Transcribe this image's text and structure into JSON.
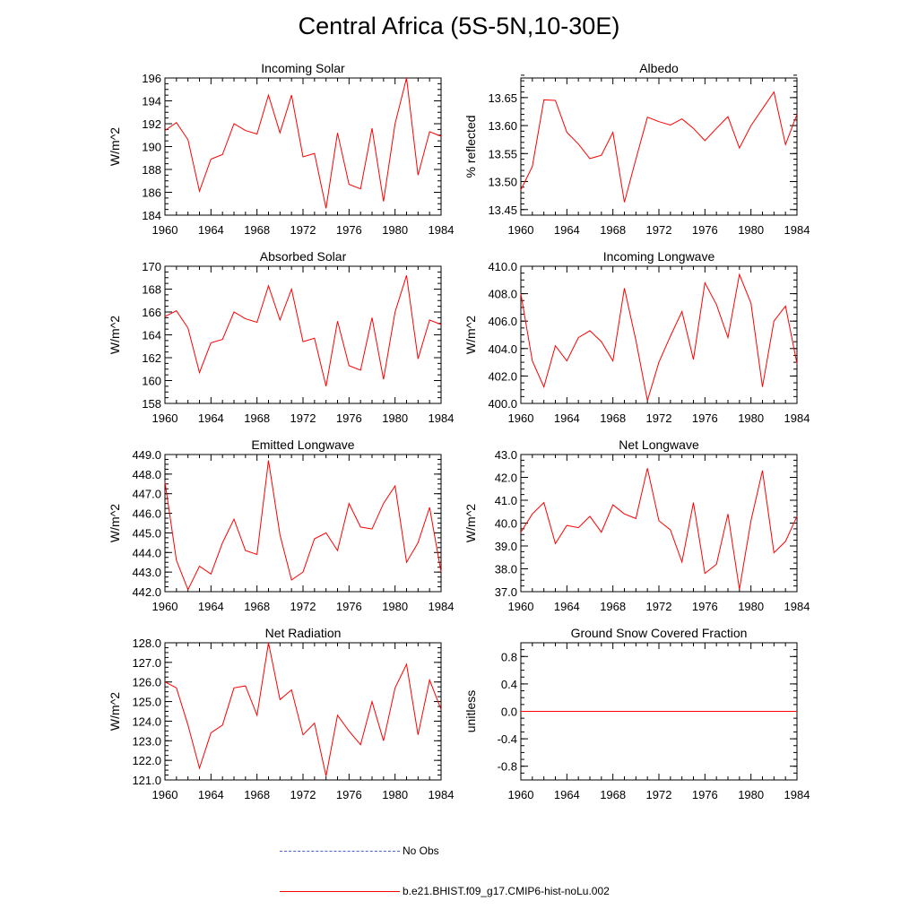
{
  "title": "Central Africa (5S-5N,10-30E)",
  "colors": {
    "model": "#ff0000",
    "obs": "#4c5fd5",
    "axis": "#000000"
  },
  "legend": [
    {
      "label": "No Obs",
      "style": "dashed",
      "color": "#4c5fd5"
    },
    {
      "label": "b.e21.BHIST.f09_g17.CMIP6-hist-noLu.002",
      "style": "solid",
      "color": "#ff0000"
    }
  ],
  "chart_data": [
    {
      "type": "line",
      "title": "Incoming Solar",
      "ylabel": "W/m^2",
      "x": [
        1960,
        1961,
        1962,
        1963,
        1964,
        1965,
        1966,
        1967,
        1968,
        1969,
        1970,
        1971,
        1972,
        1973,
        1974,
        1975,
        1976,
        1977,
        1978,
        1979,
        1980,
        1981,
        1982,
        1983,
        1984
      ],
      "xlim": [
        1960,
        1984
      ],
      "xticks": [
        1960,
        1964,
        1968,
        1972,
        1976,
        1980,
        1984
      ],
      "ylim": [
        184,
        196
      ],
      "yticks": [
        184,
        186,
        188,
        190,
        192,
        194,
        196
      ],
      "yticklabels": [
        "184",
        "186",
        "188",
        "190",
        "192",
        "194",
        "196"
      ],
      "yminor": 0.5,
      "series": [
        {
          "values": [
            191.4,
            192.1,
            190.6,
            186.1,
            188.9,
            189.3,
            192.0,
            191.4,
            191.1,
            194.5,
            191.2,
            194.5,
            189.1,
            189.4,
            184.6,
            191.2,
            186.7,
            186.3,
            191.6,
            185.2,
            192.0,
            196.0,
            187.5,
            191.3,
            190.9
          ]
        }
      ]
    },
    {
      "type": "line",
      "title": "Albedo",
      "ylabel": "% reflected",
      "x": [
        1960,
        1961,
        1962,
        1963,
        1964,
        1965,
        1966,
        1967,
        1968,
        1969,
        1970,
        1971,
        1972,
        1973,
        1974,
        1975,
        1976,
        1977,
        1978,
        1979,
        1980,
        1981,
        1982,
        1983,
        1984
      ],
      "xlim": [
        1960,
        1984
      ],
      "xticks": [
        1960,
        1964,
        1968,
        1972,
        1976,
        1980,
        1984
      ],
      "ylim": [
        13.44,
        13.685
      ],
      "yticks": [
        13.45,
        13.5,
        13.55,
        13.6,
        13.65
      ],
      "yticklabels": [
        "13.45",
        "13.50",
        "13.55",
        "13.60",
        "13.65"
      ],
      "yminor": 0.01,
      "series": [
        {
          "values": [
            13.485,
            13.527,
            13.646,
            13.645,
            13.588,
            13.567,
            13.541,
            13.547,
            13.588,
            13.463,
            13.54,
            13.615,
            13.607,
            13.601,
            13.612,
            13.595,
            13.573,
            13.595,
            13.616,
            13.56,
            13.6,
            13.63,
            13.66,
            13.566,
            13.62
          ]
        }
      ]
    },
    {
      "type": "line",
      "title": "Absorbed Solar",
      "ylabel": "W/m^2",
      "x": [
        1960,
        1961,
        1962,
        1963,
        1964,
        1965,
        1966,
        1967,
        1968,
        1969,
        1970,
        1971,
        1972,
        1973,
        1974,
        1975,
        1976,
        1977,
        1978,
        1979,
        1980,
        1981,
        1982,
        1983,
        1984
      ],
      "xlim": [
        1960,
        1984
      ],
      "xticks": [
        1960,
        1964,
        1968,
        1972,
        1976,
        1980,
        1984
      ],
      "ylim": [
        158,
        170
      ],
      "yticks": [
        158,
        160,
        162,
        164,
        166,
        168,
        170
      ],
      "yticklabels": [
        "158",
        "160",
        "162",
        "164",
        "166",
        "168",
        "170"
      ],
      "yminor": 0.5,
      "series": [
        {
          "values": [
            165.6,
            166.1,
            164.6,
            160.7,
            163.3,
            163.6,
            166.0,
            165.4,
            165.1,
            168.3,
            165.3,
            168.0,
            163.4,
            163.7,
            159.5,
            165.2,
            161.3,
            160.9,
            165.5,
            160.1,
            166.0,
            169.2,
            161.9,
            165.3,
            164.9
          ]
        }
      ]
    },
    {
      "type": "line",
      "title": "Incoming Longwave",
      "ylabel": "W/m^2",
      "x": [
        1960,
        1961,
        1962,
        1963,
        1964,
        1965,
        1966,
        1967,
        1968,
        1969,
        1970,
        1971,
        1972,
        1973,
        1974,
        1975,
        1976,
        1977,
        1978,
        1979,
        1980,
        1981,
        1982,
        1983,
        1984
      ],
      "xlim": [
        1960,
        1984
      ],
      "xticks": [
        1960,
        1964,
        1968,
        1972,
        1976,
        1980,
        1984
      ],
      "ylim": [
        400,
        410
      ],
      "yticks": [
        400,
        402,
        404,
        406,
        408,
        410
      ],
      "yticklabels": [
        "400.0",
        "402.0",
        "404.0",
        "406.0",
        "408.0",
        "410.0"
      ],
      "yminor": 0.5,
      "series": [
        {
          "values": [
            408.0,
            403.1,
            401.2,
            404.2,
            403.1,
            404.8,
            405.3,
            404.5,
            403.1,
            408.4,
            404.6,
            400.2,
            403.0,
            404.9,
            406.7,
            403.2,
            408.8,
            407.2,
            404.8,
            409.4,
            407.3,
            401.2,
            406.0,
            407.1,
            402.9
          ]
        }
      ]
    },
    {
      "type": "line",
      "title": "Emitted Longwave",
      "ylabel": "W/m^2",
      "x": [
        1960,
        1961,
        1962,
        1963,
        1964,
        1965,
        1966,
        1967,
        1968,
        1969,
        1970,
        1971,
        1972,
        1973,
        1974,
        1975,
        1976,
        1977,
        1978,
        1979,
        1980,
        1981,
        1982,
        1983,
        1984
      ],
      "xlim": [
        1960,
        1984
      ],
      "xticks": [
        1960,
        1964,
        1968,
        1972,
        1976,
        1980,
        1984
      ],
      "ylim": [
        442,
        449
      ],
      "yticks": [
        442,
        443,
        444,
        445,
        446,
        447,
        448,
        449
      ],
      "yticklabels": [
        "442.0",
        "443.0",
        "444.0",
        "445.0",
        "446.0",
        "447.0",
        "448.0",
        "449.0"
      ],
      "yminor": 0.25,
      "series": [
        {
          "values": [
            447.6,
            443.6,
            442.1,
            443.3,
            442.9,
            444.5,
            445.7,
            444.1,
            443.9,
            448.7,
            444.9,
            442.6,
            443.0,
            444.7,
            445.0,
            444.1,
            446.5,
            445.3,
            445.2,
            446.5,
            447.4,
            443.5,
            444.5,
            446.3,
            443.0
          ]
        }
      ]
    },
    {
      "type": "line",
      "title": "Net Longwave",
      "ylabel": "W/m^2",
      "x": [
        1960,
        1961,
        1962,
        1963,
        1964,
        1965,
        1966,
        1967,
        1968,
        1969,
        1970,
        1971,
        1972,
        1973,
        1974,
        1975,
        1976,
        1977,
        1978,
        1979,
        1980,
        1981,
        1982,
        1983,
        1984
      ],
      "xlim": [
        1960,
        1984
      ],
      "xticks": [
        1960,
        1964,
        1968,
        1972,
        1976,
        1980,
        1984
      ],
      "ylim": [
        37,
        43
      ],
      "yticks": [
        37,
        38,
        39,
        40,
        41,
        42,
        43
      ],
      "yticklabels": [
        "37.0",
        "38.0",
        "39.0",
        "40.0",
        "41.0",
        "42.0",
        "43.0"
      ],
      "yminor": 0.25,
      "series": [
        {
          "values": [
            39.6,
            40.4,
            40.9,
            39.1,
            39.9,
            39.8,
            40.3,
            39.6,
            40.8,
            40.4,
            40.2,
            42.4,
            40.1,
            39.7,
            38.3,
            40.9,
            37.8,
            38.2,
            40.4,
            37.1,
            40.1,
            42.3,
            38.7,
            39.2,
            40.3
          ]
        }
      ]
    },
    {
      "type": "line",
      "title": "Net Radiation",
      "ylabel": "W/m^2",
      "x": [
        1960,
        1961,
        1962,
        1963,
        1964,
        1965,
        1966,
        1967,
        1968,
        1969,
        1970,
        1971,
        1972,
        1973,
        1974,
        1975,
        1976,
        1977,
        1978,
        1979,
        1980,
        1981,
        1982,
        1983,
        1984
      ],
      "xlim": [
        1960,
        1984
      ],
      "xticks": [
        1960,
        1964,
        1968,
        1972,
        1976,
        1980,
        1984
      ],
      "ylim": [
        121,
        128
      ],
      "yticks": [
        121,
        122,
        123,
        124,
        125,
        126,
        127,
        128
      ],
      "yticklabels": [
        "121.0",
        "122.0",
        "123.0",
        "124.0",
        "125.0",
        "126.0",
        "127.0",
        "128.0"
      ],
      "yminor": 0.25,
      "series": [
        {
          "values": [
            126.0,
            125.7,
            123.8,
            121.6,
            123.4,
            123.8,
            125.7,
            125.8,
            124.3,
            128.0,
            125.1,
            125.6,
            123.3,
            123.9,
            121.2,
            124.3,
            123.5,
            122.8,
            125.0,
            123.0,
            125.7,
            126.9,
            123.3,
            126.1,
            124.6
          ]
        }
      ]
    },
    {
      "type": "line",
      "title": "Ground Snow Covered Fraction",
      "ylabel": "unitless",
      "x": [
        1960,
        1961,
        1962,
        1963,
        1964,
        1965,
        1966,
        1967,
        1968,
        1969,
        1970,
        1971,
        1972,
        1973,
        1974,
        1975,
        1976,
        1977,
        1978,
        1979,
        1980,
        1981,
        1982,
        1983,
        1984
      ],
      "xlim": [
        1960,
        1984
      ],
      "xticks": [
        1960,
        1964,
        1968,
        1972,
        1976,
        1980,
        1984
      ],
      "ylim": [
        -1,
        1
      ],
      "yticks": [
        -0.8,
        -0.4,
        0,
        0.4,
        0.8
      ],
      "yticklabels": [
        "-0.8",
        "-0.4",
        "0.0",
        "0.4",
        "0.8"
      ],
      "yminor": 0.1,
      "series": [
        {
          "values": [
            0,
            0,
            0,
            0,
            0,
            0,
            0,
            0,
            0,
            0,
            0,
            0,
            0,
            0,
            0,
            0,
            0,
            0,
            0,
            0,
            0,
            0,
            0,
            0,
            0
          ]
        }
      ]
    }
  ]
}
